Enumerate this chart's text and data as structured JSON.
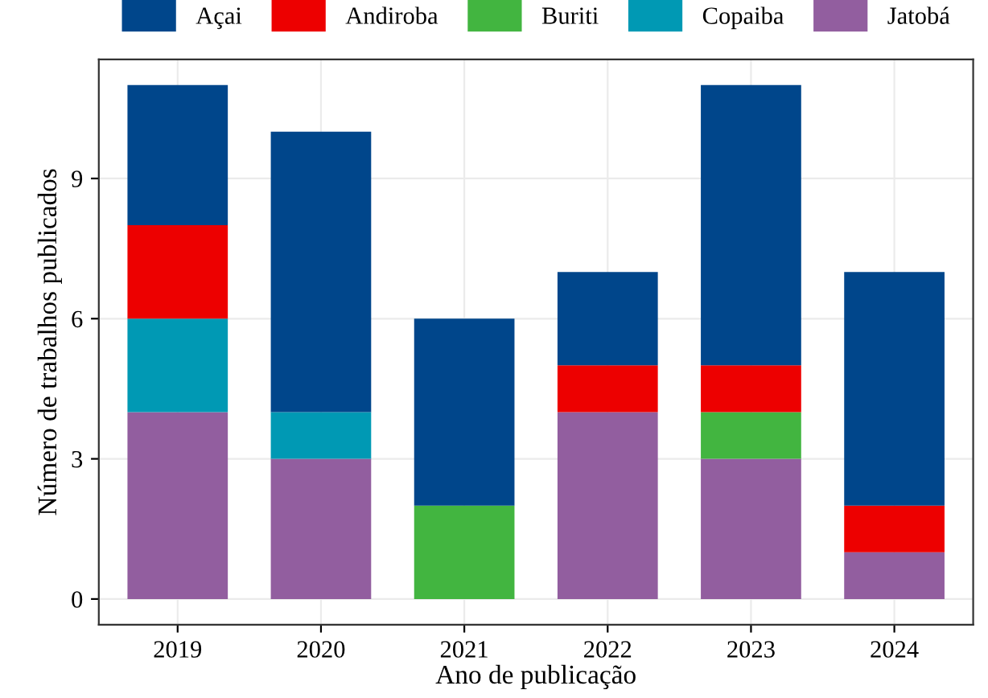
{
  "chart_data": {
    "type": "bar",
    "stacked": true,
    "xlabel": "Ano de publicação",
    "ylabel": "Número de trabalhos publicados",
    "categories": [
      "2019",
      "2020",
      "2021",
      "2022",
      "2023",
      "2024"
    ],
    "series": [
      {
        "name": "Jatobá",
        "color": "#925e9f",
        "values": [
          4,
          3,
          0,
          4,
          3,
          1
        ]
      },
      {
        "name": "Copaiba",
        "color": "#0099b4",
        "values": [
          2,
          1,
          0,
          0,
          0,
          0
        ]
      },
      {
        "name": "Buriti",
        "color": "#42b540",
        "values": [
          0,
          0,
          2,
          0,
          1,
          0
        ]
      },
      {
        "name": "Andiroba",
        "color": "#ed0000",
        "values": [
          2,
          0,
          0,
          1,
          1,
          1
        ]
      },
      {
        "name": "Açai",
        "color": "#00468b",
        "values": [
          3,
          6,
          4,
          2,
          6,
          5
        ]
      }
    ],
    "ylim": [
      -0.55,
      11.55
    ],
    "yticks": [
      0,
      3,
      6,
      9
    ],
    "grid": true,
    "legend": "top"
  }
}
